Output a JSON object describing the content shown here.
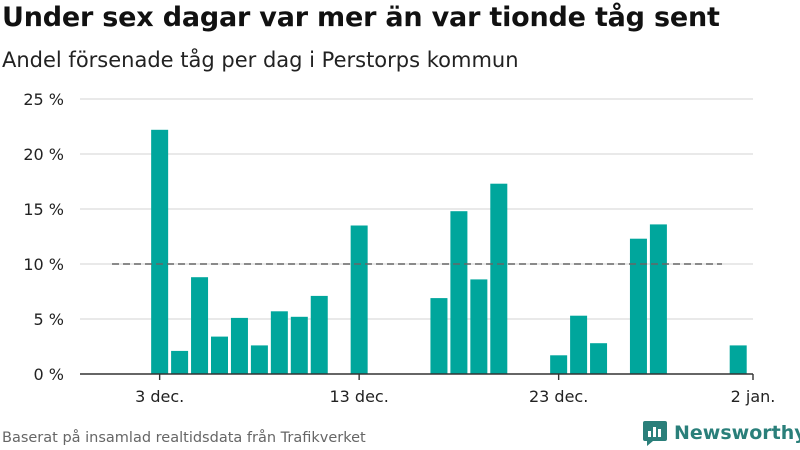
{
  "chart_data": {
    "type": "bar",
    "title": "Under sex dagar var mer än var tionde tåg sent",
    "subtitle": "Andel försenade tåg per dag i Perstorps kommun",
    "x_start": "2020-12-02",
    "x_ticks": [
      {
        "date": "2020-12-03",
        "label": "3 dec."
      },
      {
        "date": "2020-12-13",
        "label": "13 dec."
      },
      {
        "date": "2020-12-23",
        "label": "23 dec."
      },
      {
        "date": "2021-01-02",
        "label": "2 jan."
      }
    ],
    "y_ticks": [
      {
        "value": 0,
        "label": "0 %"
      },
      {
        "value": 5,
        "label": "5 %"
      },
      {
        "value": 10,
        "label": "10 %"
      },
      {
        "value": 15,
        "label": "15 %"
      },
      {
        "value": 20,
        "label": "20 %"
      },
      {
        "value": 25,
        "label": "25 %"
      }
    ],
    "ylim": [
      0,
      25
    ],
    "reference_line": 10,
    "bar_color": "#00a69c",
    "data": [
      {
        "date": "2020-12-03",
        "value": 22.2
      },
      {
        "date": "2020-12-04",
        "value": 2.1
      },
      {
        "date": "2020-12-05",
        "value": 8.8
      },
      {
        "date": "2020-12-06",
        "value": 3.4
      },
      {
        "date": "2020-12-07",
        "value": 5.1
      },
      {
        "date": "2020-12-08",
        "value": 2.6
      },
      {
        "date": "2020-12-09",
        "value": 5.7
      },
      {
        "date": "2020-12-10",
        "value": 5.2
      },
      {
        "date": "2020-12-11",
        "value": 7.1
      },
      {
        "date": "2020-12-13",
        "value": 13.5
      },
      {
        "date": "2020-12-17",
        "value": 6.9
      },
      {
        "date": "2020-12-18",
        "value": 14.8
      },
      {
        "date": "2020-12-19",
        "value": 8.6
      },
      {
        "date": "2020-12-20",
        "value": 17.3
      },
      {
        "date": "2020-12-23",
        "value": 1.7
      },
      {
        "date": "2020-12-24",
        "value": 5.3
      },
      {
        "date": "2020-12-25",
        "value": 2.8
      },
      {
        "date": "2020-12-27",
        "value": 12.3
      },
      {
        "date": "2020-12-28",
        "value": 13.6
      },
      {
        "date": "2021-01-01",
        "value": 2.6
      }
    ]
  },
  "footer": {
    "source": "Baserat på insamlad realtidsdata från Trafikverket",
    "brand": "Newsworthy"
  },
  "icons": {
    "logo": "newsworthy-logo-icon"
  },
  "colors": {
    "accent": "#00a69c",
    "brand": "#2a7f7a"
  }
}
